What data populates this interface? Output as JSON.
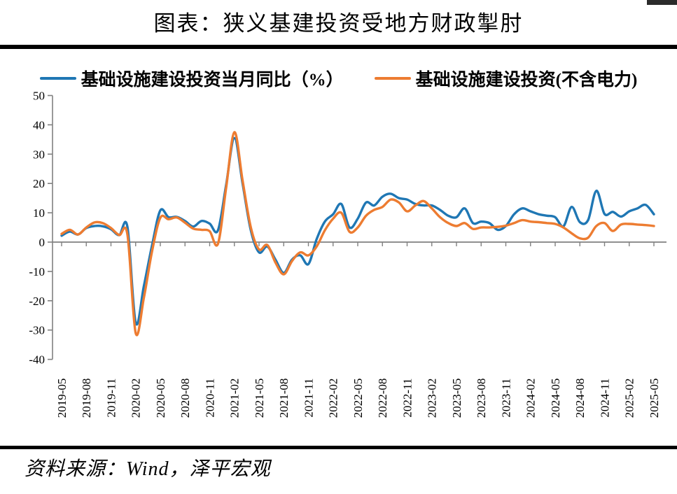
{
  "header": {
    "title": "图表：狭义基建投资受地方财政掣肘"
  },
  "legend": {
    "items": [
      {
        "label": "基础设施建设投资当月同比（%）",
        "color": "#1F77B4"
      },
      {
        "label": "基础设施建设投资(不含电力)",
        "color": "#ED7C31"
      }
    ]
  },
  "footer": {
    "source": "资料来源：Wind，泽平宏观"
  },
  "chart_data": {
    "type": "line",
    "title": "图表：狭义基建投资受地方财政掣肘",
    "xlabel": "",
    "ylabel": "",
    "ylim": [
      -40,
      50
    ],
    "ytick_step": 10,
    "grid": false,
    "legend_position": "top",
    "axis_color": "#808080",
    "months_per_tick": 3,
    "x_tick_labels": [
      "2019-05",
      "2019-08",
      "2019-11",
      "2020-02",
      "2020-05",
      "2020-08",
      "2020-11",
      "2021-02",
      "2021-05",
      "2021-08",
      "2021-11",
      "2022-02",
      "2022-05",
      "2022-08",
      "2022-11",
      "2023-02",
      "2023-05",
      "2023-08",
      "2023-11",
      "2024-02",
      "2024-05",
      "2024-08",
      "2024-11",
      "2025-02",
      "2025-05"
    ],
    "series": [
      {
        "name": "基础设施建设投资当月同比（%）",
        "color": "#1F77B4",
        "values": [
          2.2,
          3.6,
          2.6,
          4.8,
          5.5,
          5.4,
          4.4,
          2.4,
          5.2,
          -27.5,
          -15,
          -1,
          10.8,
          8.5,
          8.6,
          7.2,
          5.3,
          7.2,
          6.3,
          4,
          19.5,
          35.5,
          20,
          4,
          -3.5,
          -1.5,
          -6,
          -10.5,
          -6,
          -4.5,
          -7.5,
          1,
          7,
          9.5,
          13,
          5,
          8,
          13.5,
          12.5,
          15.5,
          16.5,
          15,
          14.5,
          13,
          12.5,
          12.5,
          11,
          9,
          8.5,
          11.5,
          6.5,
          7,
          6.5,
          4.2,
          5.5,
          9.5,
          11.5,
          10.5,
          9.5,
          9,
          8.5,
          5.4,
          12,
          6.8,
          7.5,
          17.5,
          9.6,
          10.3,
          8.7,
          10.5,
          11.5,
          12.7,
          9.5
        ]
      },
      {
        "name": "基础设施建设投资(不含电力)",
        "color": "#ED7C31",
        "values": [
          2.8,
          4.2,
          2.6,
          5,
          6.7,
          6.5,
          4.8,
          2.4,
          2.6,
          -31,
          -19,
          -3,
          8.3,
          7.8,
          8.4,
          6.6,
          4.6,
          4.2,
          3.7,
          -0.6,
          18.5,
          37.5,
          21,
          5,
          -2.5,
          -1,
          -7,
          -11,
          -6.5,
          -3.5,
          -4.5,
          -1.5,
          4,
          8,
          10,
          3.5,
          5,
          9,
          11,
          12,
          14.5,
          13.5,
          10.5,
          12.5,
          14,
          11.5,
          8.5,
          6.5,
          5.5,
          6.5,
          4.5,
          5,
          5,
          5.2,
          5.6,
          6.5,
          7.5,
          7,
          6.8,
          6.5,
          6.2,
          5,
          3,
          1.3,
          1.5,
          5.5,
          6.5,
          3.8,
          6,
          6.2,
          6,
          5.8,
          5.5
        ]
      }
    ]
  }
}
